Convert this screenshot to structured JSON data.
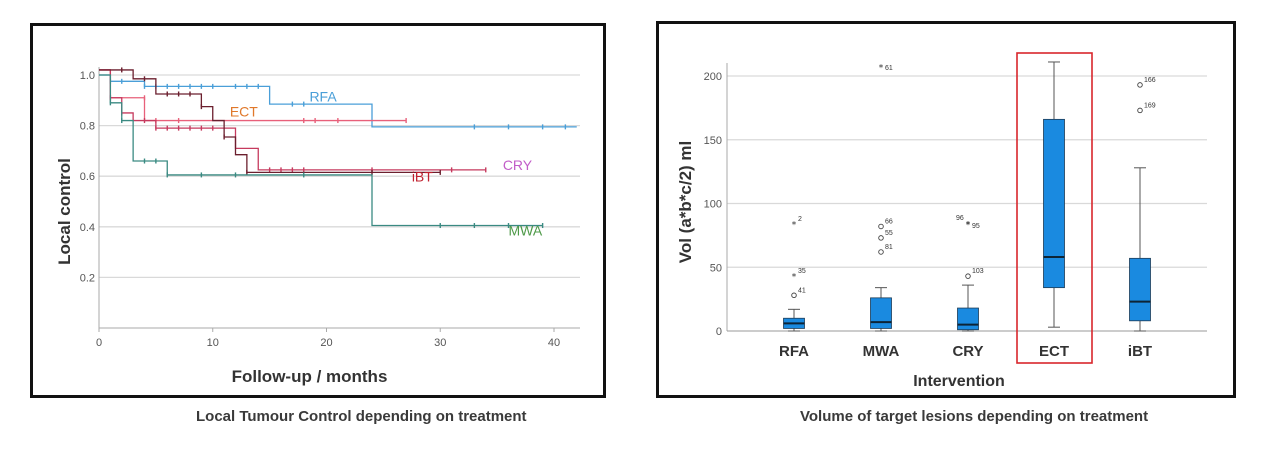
{
  "chart_data": [
    {
      "type": "line",
      "subtype": "kaplan-meier",
      "title": "",
      "caption": "Local Tumour Control depending on treatment",
      "xlabel": "Follow-up / months",
      "ylabel": "Local control",
      "xlim": [
        0,
        42
      ],
      "ylim": [
        0,
        1.05
      ],
      "xticks": [
        "0",
        "10",
        "20",
        "30",
        "40"
      ],
      "xtick_values": [
        0,
        10,
        20,
        30,
        40
      ],
      "yticks": [
        "0.2",
        "0.4",
        "0.6",
        "0.8",
        "1.0"
      ],
      "ytick_values": [
        0.2,
        0.4,
        0.6,
        0.8,
        1.0
      ],
      "grid": "horizontal",
      "series": [
        {
          "name": "RFA",
          "color": "#4a9fd8",
          "label_pos": [
            18.5,
            0.895
          ],
          "steps": [
            [
              0,
              1.0
            ],
            [
              1,
              0.975
            ],
            [
              4,
              0.955
            ],
            [
              15,
              0.885
            ],
            [
              24,
              0.795
            ],
            [
              42,
              0.795
            ]
          ],
          "censored": [
            [
              1,
              0.975
            ],
            [
              2,
              0.975
            ],
            [
              4,
              0.955
            ],
            [
              5,
              0.955
            ],
            [
              6,
              0.955
            ],
            [
              7,
              0.955
            ],
            [
              8,
              0.955
            ],
            [
              9,
              0.955
            ],
            [
              10,
              0.955
            ],
            [
              12,
              0.955
            ],
            [
              13,
              0.955
            ],
            [
              14,
              0.955
            ],
            [
              17,
              0.885
            ],
            [
              18,
              0.885
            ],
            [
              33,
              0.795
            ],
            [
              36,
              0.795
            ],
            [
              39,
              0.795
            ],
            [
              41,
              0.795
            ]
          ],
          "end": 42
        },
        {
          "name": "ECT",
          "color": "#e8607a",
          "label_color": "#e0782a",
          "label_pos": [
            11.5,
            0.835
          ],
          "steps": [
            [
              0,
              1.02
            ],
            [
              1,
              0.91
            ],
            [
              4,
              0.82
            ],
            [
              27,
              0.82
            ]
          ],
          "censored": [
            [
              1,
              0.91
            ],
            [
              4,
              0.91
            ],
            [
              5,
              0.82
            ],
            [
              7,
              0.82
            ],
            [
              18,
              0.82
            ],
            [
              19,
              0.82
            ],
            [
              21,
              0.82
            ],
            [
              27,
              0.82
            ]
          ],
          "end": 27
        },
        {
          "name": "CRY",
          "color": "#c63a5e",
          "label_color": "#c25ec8",
          "label_pos": [
            35.5,
            0.625
          ],
          "steps": [
            [
              0,
              1.02
            ],
            [
              1,
              0.91
            ],
            [
              2,
              0.85
            ],
            [
              3,
              0.82
            ],
            [
              5,
              0.79
            ],
            [
              11,
              0.79
            ],
            [
              12,
              0.71
            ],
            [
              14,
              0.625
            ],
            [
              34,
              0.625
            ]
          ],
          "censored": [
            [
              1,
              0.91
            ],
            [
              2,
              0.85
            ],
            [
              4,
              0.82
            ],
            [
              5,
              0.79
            ],
            [
              6,
              0.79
            ],
            [
              7,
              0.79
            ],
            [
              8,
              0.79
            ],
            [
              9,
              0.79
            ],
            [
              10,
              0.79
            ],
            [
              15,
              0.625
            ],
            [
              16,
              0.625
            ],
            [
              17,
              0.625
            ],
            [
              18,
              0.625
            ],
            [
              24,
              0.625
            ],
            [
              31,
              0.625
            ],
            [
              34,
              0.625
            ]
          ],
          "end": 34
        },
        {
          "name": "iBT",
          "color": "#6b1f2e",
          "label_color": "#c0202e",
          "label_pos": [
            27.5,
            0.58
          ],
          "steps": [
            [
              0,
              1.02
            ],
            [
              3,
              0.985
            ],
            [
              5,
              0.925
            ],
            [
              9,
              0.875
            ],
            [
              10,
              0.82
            ],
            [
              11,
              0.755
            ],
            [
              12,
              0.685
            ],
            [
              13,
              0.615
            ],
            [
              30,
              0.615
            ]
          ],
          "censored": [
            [
              2,
              1.02
            ],
            [
              4,
              0.985
            ],
            [
              6,
              0.925
            ],
            [
              7,
              0.925
            ],
            [
              8,
              0.925
            ],
            [
              9,
              0.875
            ],
            [
              11,
              0.755
            ],
            [
              13,
              0.615
            ],
            [
              24,
              0.615
            ],
            [
              30,
              0.615
            ]
          ],
          "end": 30
        },
        {
          "name": "MWA",
          "color": "#3a8a82",
          "label_color": "#4e9a48",
          "label_pos": [
            36,
            0.365
          ],
          "steps": [
            [
              0,
              1.0
            ],
            [
              1,
              0.89
            ],
            [
              2,
              0.82
            ],
            [
              3,
              0.66
            ],
            [
              6,
              0.605
            ],
            [
              24,
              0.405
            ],
            [
              39,
              0.405
            ]
          ],
          "censored": [
            [
              1,
              0.89
            ],
            [
              2,
              0.82
            ],
            [
              4,
              0.66
            ],
            [
              5,
              0.66
            ],
            [
              6,
              0.605
            ],
            [
              9,
              0.605
            ],
            [
              12,
              0.605
            ],
            [
              18,
              0.605
            ],
            [
              30,
              0.405
            ],
            [
              33,
              0.405
            ],
            [
              36,
              0.405
            ],
            [
              39,
              0.405
            ]
          ],
          "end": 39
        }
      ]
    },
    {
      "type": "box",
      "title": "",
      "caption": "Volume of target lesions depending on treatment",
      "xlabel": "Intervention",
      "ylabel": "Vol (a*b*c/2) ml",
      "ylim": [
        0,
        210
      ],
      "yticks": [
        "0",
        "50",
        "100",
        "150",
        "200"
      ],
      "ytick_values": [
        0,
        50,
        100,
        150,
        200
      ],
      "grid": "horizontal",
      "box_color": "#1a8ae0",
      "highlight_color": "#d8262c",
      "categories": [
        "RFA",
        "MWA",
        "CRY",
        "ECT",
        "iBT"
      ],
      "highlighted_category": "ECT",
      "boxes": [
        {
          "name": "RFA",
          "min": 0,
          "q1": 2,
          "median": 6,
          "q3": 10,
          "max": 17,
          "outliers": [
            {
              "value": 84,
              "id": "2",
              "marker": "star"
            },
            {
              "value": 43,
              "id": "35",
              "marker": "star"
            },
            {
              "value": 28,
              "id": "41",
              "marker": "circle"
            }
          ]
        },
        {
          "name": "MWA",
          "min": 0,
          "q1": 2,
          "median": 7,
          "q3": 26,
          "max": 34,
          "outliers": [
            {
              "value": 207,
              "id": "61",
              "marker": "star"
            },
            {
              "value": 82,
              "id": "66",
              "marker": "circle"
            },
            {
              "value": 73,
              "id": "55",
              "marker": "circle"
            },
            {
              "value": 62,
              "id": "81",
              "marker": "circle"
            }
          ]
        },
        {
          "name": "CRY",
          "min": 0,
          "q1": 1,
          "median": 5,
          "q3": 18,
          "max": 36,
          "outliers": [
            {
              "value": 84,
              "id": "96",
              "marker": "star"
            },
            {
              "value": 84,
              "id": "95",
              "marker": "star"
            },
            {
              "value": 43,
              "id": "103",
              "marker": "circle"
            }
          ]
        },
        {
          "name": "ECT",
          "min": 3,
          "q1": 34,
          "median": 58,
          "q3": 166,
          "max": 211,
          "outliers": []
        },
        {
          "name": "iBT",
          "min": 0,
          "q1": 8,
          "median": 23,
          "q3": 57,
          "max": 128,
          "outliers": [
            {
              "value": 193,
              "id": "166",
              "marker": "circle"
            },
            {
              "value": 173,
              "id": "169",
              "marker": "circle"
            }
          ]
        }
      ]
    }
  ]
}
